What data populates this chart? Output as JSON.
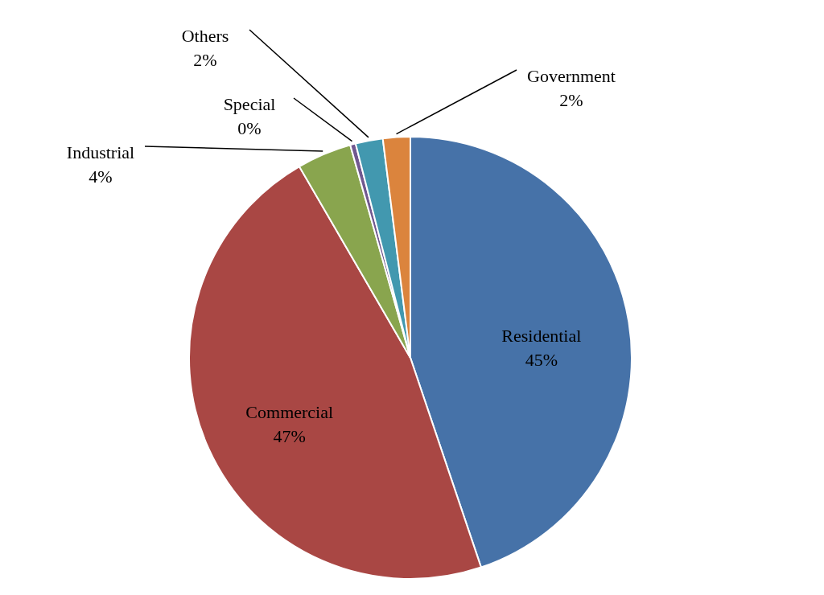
{
  "chart_data": {
    "type": "pie",
    "categories": [
      "Residential",
      "Commercial",
      "Industrial",
      "Special",
      "Others",
      "Government"
    ],
    "values": [
      45,
      47,
      4,
      0.4,
      2,
      2
    ],
    "value_labels": [
      "45%",
      "47%",
      "4%",
      "0%",
      "2%",
      "2%"
    ],
    "colors": [
      "#4672a8",
      "#a94744",
      "#89a54e",
      "#71588f",
      "#4298af",
      "#db843d"
    ]
  }
}
